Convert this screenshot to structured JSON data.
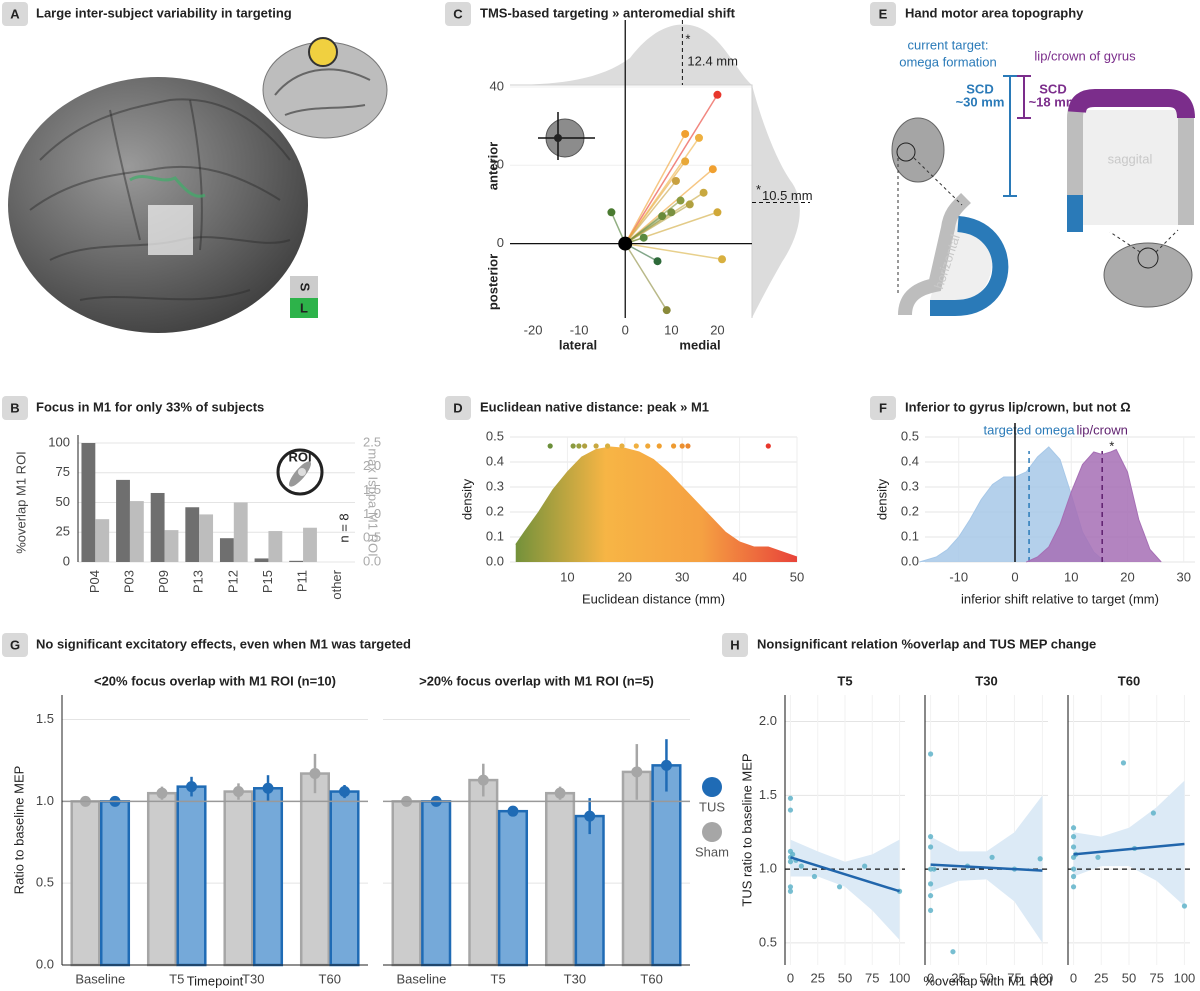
{
  "figure_panels": {
    "a": {
      "label": "A",
      "title": "Large inter-subject variability in targeting",
      "orientation": [
        "S",
        "L"
      ]
    },
    "e": {
      "label": "E",
      "title": "Hand motor area topography",
      "current_target": [
        "current target:",
        "omega formation"
      ],
      "lip_crown": "lip/crown of gyrus",
      "scd_omega": [
        "SCD",
        "~30 mm"
      ],
      "scd_lip": [
        "SCD",
        "~18 mm"
      ],
      "sagittal": "saggital",
      "horizontal": "horizontal"
    }
  },
  "chart_data": [
    {
      "type": "bar",
      "panel": "B",
      "title": "Focus in M1 for only 33% of subjects",
      "categories": [
        "P04",
        "P03",
        "P09",
        "P13",
        "P12",
        "P15",
        "P11",
        "other"
      ],
      "series": [
        {
          "color": "#6f6f6f",
          "values": [
            100,
            69,
            58,
            46,
            20,
            3,
            1,
            null
          ]
        },
        {
          "color": "#bdbdbd",
          "axis": "y2",
          "values": [
            0.9,
            1.28,
            0.67,
            1.0,
            1.25,
            0.65,
            0.72,
            null
          ]
        }
      ],
      "ylabel": "%overlap M1 ROI",
      "y2label": "max Isppa M1 ROI",
      "ylim": [
        0,
        100
      ],
      "yticks": [
        0,
        25,
        50,
        75,
        100
      ],
      "y2lim": [
        0,
        2.5
      ],
      "y2ticks": [
        {
          "value": 0,
          "label": "0.0"
        },
        0.5,
        {
          "value": 1,
          "label": "1.0"
        },
        1.5,
        {
          "value": 2,
          "label": "2.0"
        },
        2.5
      ],
      "grid": true,
      "annotation": "n = 8",
      "icon_label": "ROI"
    },
    {
      "type": "scatter",
      "panel": "C",
      "title": "TMS-based targeting » anteromedial shift",
      "x": [
        20,
        13,
        16,
        13,
        19,
        11,
        17,
        12,
        10,
        14,
        20,
        8,
        -3,
        4,
        7,
        21,
        9
      ],
      "y": [
        38,
        28,
        27,
        21,
        19,
        16,
        13,
        11,
        8,
        10,
        8,
        7,
        8,
        1.5,
        -4.5,
        -4,
        -17
      ],
      "colors": [
        "#e8372c",
        "#f0a030",
        "#eeb040",
        "#e8a838",
        "#f0a030",
        "#c8a040",
        "#c8a840",
        "#8a9a40",
        "#7a9040",
        "#b0a040",
        "#d0a838",
        "#6a8a3a",
        "#4a7a30",
        "#5a8a40",
        "#2e6a3a",
        "#d8b040",
        "#8a8a3a"
      ],
      "xlim": [
        -25,
        27.5
      ],
      "xticks": [
        -20,
        -10,
        0,
        10,
        20
      ],
      "ylim": [
        -19,
        40.5
      ],
      "yticks": [
        0,
        20,
        40
      ],
      "xlabel": [
        "lateral",
        "medial"
      ],
      "ylabel": [
        "posterior",
        "anterior"
      ],
      "x_shift": 12.4,
      "x_shift_label": "12.4 mm",
      "y_shift": 10.5,
      "y_shift_label": "10.5 mm",
      "significance": "*",
      "grid": true
    },
    {
      "type": "density",
      "panel": "D",
      "title": "Euclidean native distance: peak » M1",
      "xlabel": "Euclidean distance (mm)",
      "ylabel": "density",
      "xlim": [
        0,
        50
      ],
      "xticks": [
        10,
        20,
        30,
        40,
        50
      ],
      "ylim": [
        0,
        0.5
      ],
      "yticks": [
        {
          "value": 0,
          "label": "0.0"
        },
        0.1,
        0.2,
        0.3,
        0.4,
        0.5
      ],
      "grid": true,
      "series": [
        {
          "gradient": [
            "#6b8f3a",
            "#f7b545",
            "#f5a142",
            "#e8433a"
          ],
          "x": [
            1,
            2.5,
            5,
            7.5,
            10,
            12.5,
            15,
            17.5,
            20,
            22.5,
            25,
            27.5,
            30,
            32.5,
            35,
            37.5,
            40,
            42.5,
            45,
            47.5,
            50
          ],
          "values": [
            0.07,
            0.12,
            0.2,
            0.29,
            0.36,
            0.42,
            0.45,
            0.46,
            0.455,
            0.44,
            0.41,
            0.36,
            0.3,
            0.24,
            0.18,
            0.12,
            0.08,
            0.06,
            0.06,
            0.04,
            0.02
          ]
        }
      ],
      "points_x": [
        7,
        11,
        12,
        13,
        15,
        17,
        19.5,
        22,
        24,
        26,
        28.5,
        30,
        31,
        45
      ],
      "points_colors": [
        "#6b8f3a",
        "#8a9a40",
        "#9aa040",
        "#b0a040",
        "#c8a840",
        "#d8b040",
        "#e8b040",
        "#f0b040",
        "#f0a838",
        "#f0a030",
        "#ee9a30",
        "#ec9030",
        "#ea8830",
        "#e8372c"
      ]
    },
    {
      "type": "density",
      "panel": "F",
      "title": "Inferior to gyrus lip/crown, but not Ω",
      "xlabel": "inferior shift relative to target (mm)",
      "ylabel": "density",
      "xlim": [
        -16,
        32
      ],
      "xticks": [
        -10,
        0,
        10,
        20,
        30
      ],
      "ylim": [
        0,
        0.5
      ],
      "yticks": [
        {
          "value": 0,
          "label": "0.0"
        },
        0.1,
        0.2,
        0.3,
        0.4,
        0.5
      ],
      "grid": true,
      "vline": 0,
      "significance": "*",
      "series": [
        {
          "name": "targeted omega",
          "color": "#a7c8e8",
          "line_color": "#2a7ab8",
          "mean": 2.5,
          "x": [
            -17,
            -14,
            -12,
            -10,
            -8,
            -6,
            -4,
            -2,
            0,
            2,
            4,
            6,
            8,
            10,
            12,
            14,
            16
          ],
          "values": [
            0,
            0.02,
            0.05,
            0.1,
            0.17,
            0.25,
            0.31,
            0.34,
            0.34,
            0.36,
            0.42,
            0.46,
            0.41,
            0.27,
            0.12,
            0.04,
            0
          ]
        },
        {
          "name": "lip/crown",
          "color": "#a66fb5",
          "line_color": "#5e1f6e",
          "mean": 15.5,
          "x": [
            2,
            4,
            6,
            8,
            10,
            12,
            14,
            15.5,
            17,
            18,
            20,
            22,
            24,
            26
          ],
          "values": [
            0,
            0.02,
            0.06,
            0.15,
            0.28,
            0.39,
            0.44,
            0.43,
            0.44,
            0.45,
            0.36,
            0.17,
            0.05,
            0
          ]
        }
      ]
    },
    {
      "type": "bar",
      "panel": "G",
      "title": "No significant excitatory effects, even when M1 was targeted",
      "ylabel": "Ratio to baseline MEP",
      "xlabel": "Timepoint",
      "categories": [
        "Baseline",
        "T5",
        "T30",
        "T60"
      ],
      "ylim": [
        0,
        1.65
      ],
      "yticks": [
        {
          "value": 0,
          "label": "0.0"
        },
        0.5,
        {
          "value": 1,
          "label": "1.0"
        },
        1.5
      ],
      "grid": true,
      "hline": 1,
      "series_names": [
        "Sham",
        "TUS"
      ],
      "colors": [
        "#cccccc",
        "#75a9d9"
      ],
      "edge_colors": [
        "#a6a6a6",
        "#1f6bb5"
      ],
      "facets": [
        {
          "title": "<20% focus overlap with M1 ROI (n=10)",
          "values": [
            [
              1,
              1.05,
              1.06,
              1.17
            ],
            [
              1,
              1.09,
              1.08,
              1.06
            ]
          ],
          "errors": [
            [
              0,
              0.04,
              0.05,
              0.12
            ],
            [
              0,
              0.06,
              0.08,
              0.04
            ]
          ]
        },
        {
          "title": ">20% focus overlap with M1 ROI (n=5)",
          "values": [
            [
              1,
              1.13,
              1.05,
              1.18
            ],
            [
              1,
              0.94,
              0.91,
              1.22
            ]
          ],
          "errors": [
            [
              0,
              0.1,
              0.04,
              0.17
            ],
            [
              0,
              0.03,
              0.11,
              0.16
            ]
          ]
        }
      ]
    },
    {
      "type": "scatter",
      "panel": "H",
      "title": "Nonsignificant relation %overlap and TUS MEP change",
      "ylabel": "TUS ratio to baseline MEP",
      "xlabel": "%overlap with M1 ROI",
      "xlim": [
        -5,
        105
      ],
      "xticks": [
        0,
        25,
        50,
        75,
        100
      ],
      "ylim": [
        0.35,
        2.18
      ],
      "yticks": [
        0.5,
        {
          "value": 1,
          "label": "1.0"
        },
        1.5,
        {
          "value": 2,
          "label": "2.0"
        }
      ],
      "grid": true,
      "hline": 1,
      "color": "#5fb3c9",
      "line_color": "#2166ac",
      "band_color": "#dceaf6",
      "facets": [
        {
          "title": "T5",
          "x": [
            0,
            0,
            0,
            0,
            0,
            0,
            0,
            2,
            5,
            10,
            22,
            45,
            68,
            100
          ],
          "y": [
            1.48,
            1.4,
            1.12,
            1.08,
            1.05,
            0.88,
            0.85,
            1.1,
            1.06,
            1.02,
            0.95,
            0.88,
            1.02,
            0.85
          ],
          "fit_x": [
            0,
            100
          ],
          "fit_y": [
            1.08,
            0.85
          ],
          "ci_x": [
            0,
            25,
            50,
            75,
            100
          ],
          "ci_lower": [
            0.95,
            0.95,
            0.88,
            0.72,
            0.52
          ],
          "ci_upper": [
            1.2,
            1.12,
            1.05,
            1.1,
            1.2
          ]
        },
        {
          "title": "T30",
          "x": [
            0,
            0,
            0,
            0,
            0,
            0,
            0,
            3,
            20,
            33,
            55,
            75,
            98
          ],
          "y": [
            1.78,
            1.22,
            1.15,
            1.0,
            0.9,
            0.82,
            0.72,
            1.0,
            0.44,
            1.02,
            1.08,
            1.0,
            1.07
          ],
          "fit_x": [
            0,
            100
          ],
          "fit_y": [
            1.03,
            0.99
          ],
          "ci_x": [
            0,
            25,
            50,
            75,
            100
          ],
          "ci_lower": [
            0.85,
            0.92,
            0.93,
            0.78,
            0.5
          ],
          "ci_upper": [
            1.22,
            1.12,
            1.12,
            1.25,
            1.5
          ]
        },
        {
          "title": "T60",
          "x": [
            0,
            0,
            0,
            0,
            0,
            0,
            0,
            2,
            22,
            45,
            55,
            72,
            100
          ],
          "y": [
            1.28,
            1.22,
            1.15,
            1.08,
            1.0,
            0.95,
            0.88,
            1.1,
            1.08,
            1.72,
            1.14,
            1.38,
            0.75
          ],
          "fit_x": [
            0,
            100
          ],
          "fit_y": [
            1.1,
            1.17
          ],
          "ci_x": [
            0,
            25,
            50,
            75,
            100
          ],
          "ci_lower": [
            0.95,
            1.02,
            1.02,
            0.92,
            0.75
          ],
          "ci_upper": [
            1.25,
            1.22,
            1.28,
            1.42,
            1.6
          ]
        }
      ]
    }
  ]
}
